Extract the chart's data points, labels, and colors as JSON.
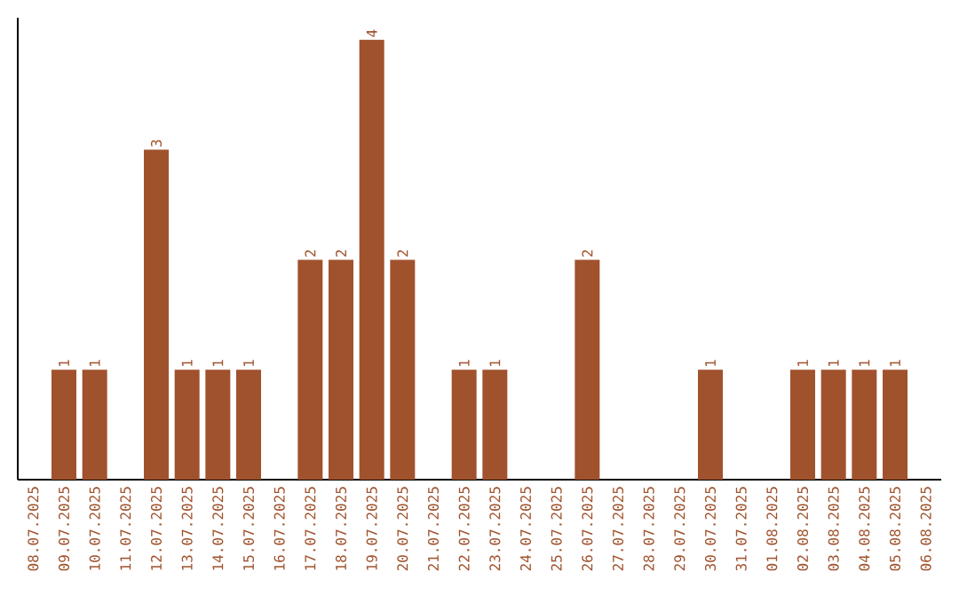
{
  "chart_data": {
    "type": "bar",
    "categories": [
      "08.07.2025",
      "09.07.2025",
      "10.07.2025",
      "11.07.2025",
      "12.07.2025",
      "13.07.2025",
      "14.07.2025",
      "15.07.2025",
      "16.07.2025",
      "17.07.2025",
      "18.07.2025",
      "19.07.2025",
      "20.07.2025",
      "21.07.2025",
      "22.07.2025",
      "23.07.2025",
      "24.07.2025",
      "25.07.2025",
      "26.07.2025",
      "27.07.2025",
      "28.07.2025",
      "29.07.2025",
      "30.07.2025",
      "31.07.2025",
      "01.08.2025",
      "02.08.2025",
      "03.08.2025",
      "04.08.2025",
      "05.08.2025",
      "06.08.2025"
    ],
    "values": [
      0,
      1,
      1,
      0,
      3,
      1,
      1,
      1,
      0,
      2,
      2,
      4,
      2,
      0,
      1,
      1,
      0,
      0,
      2,
      0,
      0,
      0,
      1,
      0,
      0,
      1,
      1,
      1,
      1,
      0
    ],
    "value_labels": [
      null,
      "1",
      "1",
      null,
      "3",
      "1",
      "1",
      "1",
      null,
      "2",
      "2",
      "4",
      "2",
      null,
      "1",
      "1",
      null,
      null,
      "2",
      null,
      null,
      null,
      "1",
      null,
      null,
      "1",
      "1",
      "1",
      "1",
      null
    ],
    "color": "#a0522d",
    "ylim": [
      0,
      4.2
    ],
    "tick_labels": "x"
  }
}
